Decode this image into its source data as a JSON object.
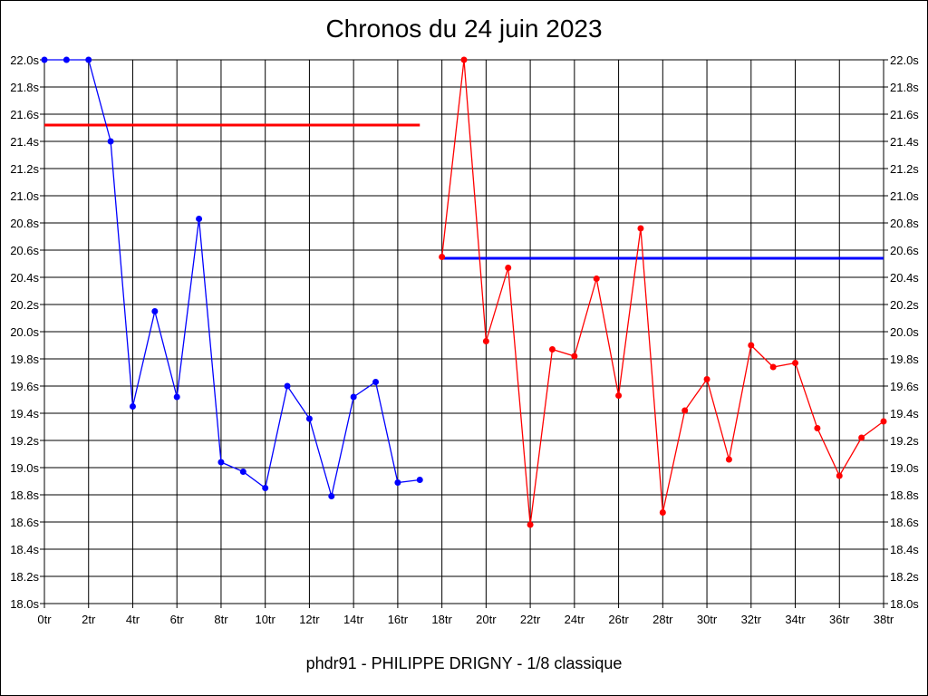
{
  "chart_data": {
    "type": "line",
    "title": "Chronos du 24 juin 2023",
    "subtitle": "phdr91 - PHILIPPE DRIGNY - 1/8 classique",
    "xlabel": "",
    "ylabel": "",
    "xlim": [
      0,
      38
    ],
    "ylim": [
      18.0,
      22.0
    ],
    "x_ticks": [
      "0tr",
      "2tr",
      "4tr",
      "6tr",
      "8tr",
      "10tr",
      "12tr",
      "14tr",
      "16tr",
      "18tr",
      "20tr",
      "22tr",
      "24tr",
      "26tr",
      "28tr",
      "30tr",
      "32tr",
      "34tr",
      "36tr",
      "38tr"
    ],
    "y_ticks": [
      "18.0s",
      "18.2s",
      "18.4s",
      "18.6s",
      "18.8s",
      "19.0s",
      "19.2s",
      "19.4s",
      "19.6s",
      "19.8s",
      "20.0s",
      "20.2s",
      "20.4s",
      "20.6s",
      "20.8s",
      "21.0s",
      "21.2s",
      "21.4s",
      "21.6s",
      "21.8s",
      "22.0s"
    ],
    "grid": true,
    "series": [
      {
        "color": "#0000ff",
        "x": [
          0,
          1,
          2,
          3,
          4,
          5,
          6,
          7,
          8,
          9,
          10,
          11,
          12,
          13,
          14,
          15,
          16,
          17
        ],
        "values": [
          22.0,
          22.0,
          22.0,
          21.4,
          19.45,
          20.15,
          19.52,
          20.83,
          19.04,
          18.97,
          18.85,
          19.6,
          19.36,
          18.79,
          19.52,
          19.63,
          18.89,
          18.91
        ]
      },
      {
        "color": "#ff0000",
        "x": [
          18,
          19,
          20,
          21,
          22,
          23,
          24,
          25,
          26,
          27,
          28,
          29,
          30,
          31,
          32,
          33,
          34,
          35,
          36,
          37,
          38
        ],
        "values": [
          20.55,
          22.0,
          19.93,
          20.47,
          18.58,
          19.87,
          19.82,
          20.39,
          19.53,
          20.76,
          18.67,
          19.42,
          19.65,
          19.06,
          19.9,
          19.74,
          19.77,
          19.29,
          18.94,
          19.22,
          19.34
        ]
      }
    ],
    "reference_lines": [
      {
        "color": "#ff0000",
        "value": 21.52,
        "x_range": [
          0,
          17
        ]
      },
      {
        "color": "#0000ff",
        "value": 20.54,
        "x_range": [
          18,
          38
        ]
      }
    ]
  }
}
